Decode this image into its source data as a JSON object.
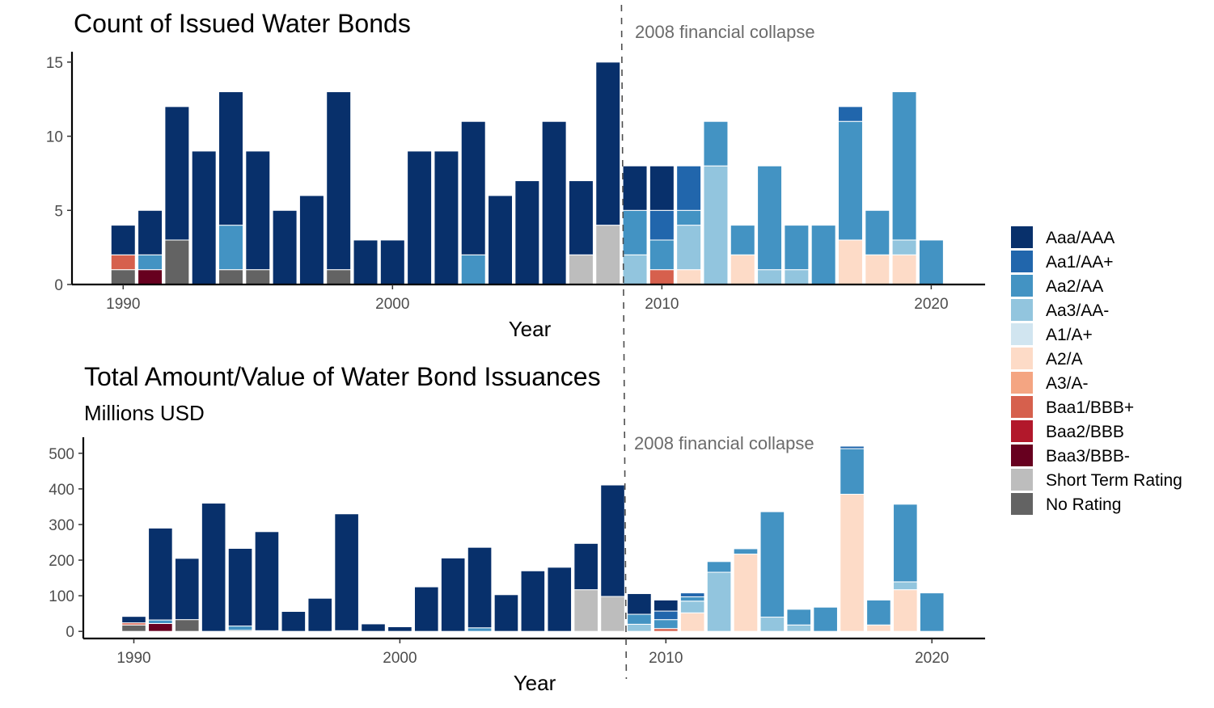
{
  "colors": {
    "Aaa/AAA": "#08306b",
    "Aa1/AA+": "#2166ac",
    "Aa2/AA": "#4393c3",
    "Aa3/AA-": "#92c5de",
    "A1/A+": "#d1e5f0",
    "A2/A": "#fddbc7",
    "A3/A-": "#f4a582",
    "Baa1/BBB+": "#d6604d",
    "Baa2/BBB": "#b2182b",
    "Baa3/BBB-": "#67001f",
    "Short Term Rating": "#bdbdbd",
    "No Rating": "#636363"
  },
  "legend": {
    "position": "right",
    "entries": [
      "Aaa/AAA",
      "Aa1/AA+",
      "Aa2/AA",
      "Aa3/AA-",
      "A1/A+",
      "A2/A",
      "A3/A-",
      "Baa1/BBB+",
      "Baa2/BBB",
      "Baa3/BBB-",
      "Short Term Rating",
      "No Rating"
    ]
  },
  "chart_data": [
    {
      "type": "bar",
      "stacked": true,
      "title": "Count of Issued Water Bonds",
      "subtitle": "",
      "xlabel": "Year",
      "ylabel": "",
      "xlim": [
        1988.1,
        2022.0
      ],
      "ylim": [
        0,
        15.7
      ],
      "xticks": [
        1990,
        2000,
        2010,
        2020
      ],
      "yticks": [
        0,
        5,
        10,
        15
      ],
      "grid": false,
      "annotation": {
        "text": "2008 financial collapse",
        "x": 2008.5
      },
      "bars": [
        {
          "year": 1990,
          "stack": [
            [
              "No Rating",
              1
            ],
            [
              "Baa1/BBB+",
              1
            ],
            [
              "Aaa/AAA",
              2
            ]
          ]
        },
        {
          "year": 1991,
          "stack": [
            [
              "Baa3/BBB-",
              1
            ],
            [
              "Aa2/AA",
              1
            ],
            [
              "Aaa/AAA",
              3
            ]
          ]
        },
        {
          "year": 1992,
          "stack": [
            [
              "No Rating",
              3
            ],
            [
              "Aaa/AAA",
              9
            ]
          ]
        },
        {
          "year": 1993,
          "stack": [
            [
              "Aaa/AAA",
              9
            ]
          ]
        },
        {
          "year": 1994,
          "stack": [
            [
              "No Rating",
              1
            ],
            [
              "Aa2/AA",
              3
            ],
            [
              "Aaa/AAA",
              9
            ]
          ]
        },
        {
          "year": 1995,
          "stack": [
            [
              "No Rating",
              1
            ],
            [
              "Aaa/AAA",
              8
            ]
          ]
        },
        {
          "year": 1996,
          "stack": [
            [
              "Aaa/AAA",
              5
            ]
          ]
        },
        {
          "year": 1997,
          "stack": [
            [
              "Aaa/AAA",
              6
            ]
          ]
        },
        {
          "year": 1998,
          "stack": [
            [
              "No Rating",
              1
            ],
            [
              "Aaa/AAA",
              12
            ]
          ]
        },
        {
          "year": 1999,
          "stack": [
            [
              "Aaa/AAA",
              3
            ]
          ]
        },
        {
          "year": 2000,
          "stack": [
            [
              "Aaa/AAA",
              3
            ]
          ]
        },
        {
          "year": 2001,
          "stack": [
            [
              "Aaa/AAA",
              9
            ]
          ]
        },
        {
          "year": 2002,
          "stack": [
            [
              "Aaa/AAA",
              9
            ]
          ]
        },
        {
          "year": 2003,
          "stack": [
            [
              "Aa2/AA",
              2
            ],
            [
              "Aaa/AAA",
              9
            ]
          ]
        },
        {
          "year": 2004,
          "stack": [
            [
              "Aaa/AAA",
              6
            ]
          ]
        },
        {
          "year": 2005,
          "stack": [
            [
              "Aaa/AAA",
              7
            ]
          ]
        },
        {
          "year": 2006,
          "stack": [
            [
              "Aaa/AAA",
              11
            ]
          ]
        },
        {
          "year": 2007,
          "stack": [
            [
              "Short Term Rating",
              2
            ],
            [
              "Aaa/AAA",
              5
            ]
          ]
        },
        {
          "year": 2008,
          "stack": [
            [
              "Short Term Rating",
              4
            ],
            [
              "Aaa/AAA",
              11
            ]
          ]
        },
        {
          "year": 2009,
          "stack": [
            [
              "Aa3/AA-",
              2
            ],
            [
              "Aa2/AA",
              3
            ],
            [
              "Aaa/AAA",
              3
            ]
          ]
        },
        {
          "year": 2010,
          "stack": [
            [
              "Baa1/BBB+",
              1
            ],
            [
              "Aa2/AA",
              2
            ],
            [
              "Aa1/AA+",
              2
            ],
            [
              "Aaa/AAA",
              3
            ]
          ]
        },
        {
          "year": 2011,
          "stack": [
            [
              "A2/A",
              1
            ],
            [
              "Aa3/AA-",
              3
            ],
            [
              "Aa2/AA",
              1
            ],
            [
              "Aa1/AA+",
              3
            ]
          ]
        },
        {
          "year": 2012,
          "stack": [
            [
              "Aa3/AA-",
              8
            ],
            [
              "Aa2/AA",
              3
            ]
          ]
        },
        {
          "year": 2013,
          "stack": [
            [
              "A2/A",
              2
            ],
            [
              "Aa2/AA",
              2
            ]
          ]
        },
        {
          "year": 2014,
          "stack": [
            [
              "Aa3/AA-",
              1
            ],
            [
              "Aa2/AA",
              7
            ]
          ]
        },
        {
          "year": 2015,
          "stack": [
            [
              "Aa3/AA-",
              1
            ],
            [
              "Aa2/AA",
              3
            ]
          ]
        },
        {
          "year": 2016,
          "stack": [
            [
              "Aa2/AA",
              4
            ]
          ]
        },
        {
          "year": 2017,
          "stack": [
            [
              "A2/A",
              3
            ],
            [
              "Aa2/AA",
              8
            ],
            [
              "Aa1/AA+",
              1
            ]
          ]
        },
        {
          "year": 2018,
          "stack": [
            [
              "A2/A",
              2
            ],
            [
              "Aa2/AA",
              3
            ]
          ]
        },
        {
          "year": 2019,
          "stack": [
            [
              "A2/A",
              2
            ],
            [
              "Aa3/AA-",
              1
            ],
            [
              "Aa2/AA",
              10
            ]
          ]
        },
        {
          "year": 2020,
          "stack": [
            [
              "Aa2/AA",
              3
            ]
          ]
        }
      ]
    },
    {
      "type": "bar",
      "stacked": true,
      "title": "Total Amount/Value of Water Bond Issuances",
      "subtitle": "Millions USD",
      "xlabel": "Year",
      "ylabel": "",
      "xlim": [
        1988.1,
        2022.0
      ],
      "ylim": [
        -20,
        545
      ],
      "xticks": [
        1990,
        2000,
        2010,
        2020
      ],
      "yticks": [
        0,
        100,
        200,
        300,
        400,
        500
      ],
      "grid": false,
      "annotation": {
        "text": "2008 financial collapse",
        "x": 2008.5
      },
      "bars": [
        {
          "year": 1990,
          "stack": [
            [
              "No Rating",
              18
            ],
            [
              "Baa1/BBB+",
              6
            ],
            [
              "Aaa/AAA",
              18
            ]
          ]
        },
        {
          "year": 1991,
          "stack": [
            [
              "Baa3/BBB-",
              22
            ],
            [
              "Aa2/AA",
              10
            ],
            [
              "Aaa/AAA",
              258
            ]
          ]
        },
        {
          "year": 1992,
          "stack": [
            [
              "No Rating",
              33
            ],
            [
              "Aaa/AAA",
              172
            ]
          ]
        },
        {
          "year": 1993,
          "stack": [
            [
              "Aaa/AAA",
              360
            ]
          ]
        },
        {
          "year": 1994,
          "stack": [
            [
              "No Rating",
              3
            ],
            [
              "Aa2/AA",
              12
            ],
            [
              "Aaa/AAA",
              218
            ]
          ]
        },
        {
          "year": 1995,
          "stack": [
            [
              "No Rating",
              2
            ],
            [
              "Aaa/AAA",
              278
            ]
          ]
        },
        {
          "year": 1996,
          "stack": [
            [
              "Aaa/AAA",
              56
            ]
          ]
        },
        {
          "year": 1997,
          "stack": [
            [
              "Aaa/AAA",
              93
            ]
          ]
        },
        {
          "year": 1998,
          "stack": [
            [
              "No Rating",
              2
            ],
            [
              "Aaa/AAA",
              328
            ]
          ]
        },
        {
          "year": 1999,
          "stack": [
            [
              "Aaa/AAA",
              21
            ]
          ]
        },
        {
          "year": 2000,
          "stack": [
            [
              "Aaa/AAA",
              13
            ]
          ]
        },
        {
          "year": 2001,
          "stack": [
            [
              "Aaa/AAA",
              125
            ]
          ]
        },
        {
          "year": 2002,
          "stack": [
            [
              "Aaa/AAA",
              206
            ]
          ]
        },
        {
          "year": 2003,
          "stack": [
            [
              "Aa2/AA",
              10
            ],
            [
              "Aaa/AAA",
              226
            ]
          ]
        },
        {
          "year": 2004,
          "stack": [
            [
              "Aaa/AAA",
              103
            ]
          ]
        },
        {
          "year": 2005,
          "stack": [
            [
              "Aaa/AAA",
              170
            ]
          ]
        },
        {
          "year": 2006,
          "stack": [
            [
              "Aaa/AAA",
              180
            ]
          ]
        },
        {
          "year": 2007,
          "stack": [
            [
              "Short Term Rating",
              117
            ],
            [
              "Aaa/AAA",
              130
            ]
          ]
        },
        {
          "year": 2008,
          "stack": [
            [
              "Short Term Rating",
              98
            ],
            [
              "Aaa/AAA",
              313
            ]
          ]
        },
        {
          "year": 2009,
          "stack": [
            [
              "Aa3/AA-",
              20
            ],
            [
              "Aa2/AA",
              28
            ],
            [
              "Aaa/AAA",
              58
            ]
          ]
        },
        {
          "year": 2010,
          "stack": [
            [
              "Baa1/BBB+",
              8
            ],
            [
              "Aa2/AA",
              25
            ],
            [
              "Aa1/AA+",
              24
            ],
            [
              "Aaa/AAA",
              31
            ]
          ]
        },
        {
          "year": 2011,
          "stack": [
            [
              "A2/A",
              52
            ],
            [
              "Aa3/AA-",
              33
            ],
            [
              "Aa2/AA",
              12
            ],
            [
              "Aa1/AA+",
              11
            ]
          ]
        },
        {
          "year": 2012,
          "stack": [
            [
              "Aa3/AA-",
              166
            ],
            [
              "Aa2/AA",
              30
            ]
          ]
        },
        {
          "year": 2013,
          "stack": [
            [
              "A2/A",
              217
            ],
            [
              "Aa2/AA",
              15
            ]
          ]
        },
        {
          "year": 2014,
          "stack": [
            [
              "Aa3/AA-",
              40
            ],
            [
              "Aa2/AA",
              296
            ]
          ]
        },
        {
          "year": 2015,
          "stack": [
            [
              "Aa3/AA-",
              18
            ],
            [
              "Aa2/AA",
              44
            ]
          ]
        },
        {
          "year": 2016,
          "stack": [
            [
              "Aa2/AA",
              68
            ]
          ]
        },
        {
          "year": 2017,
          "stack": [
            [
              "A2/A",
              385
            ],
            [
              "Aa2/AA",
              128
            ],
            [
              "Aa1/AA+",
              7
            ]
          ]
        },
        {
          "year": 2018,
          "stack": [
            [
              "A2/A",
              18
            ],
            [
              "Aa2/AA",
              70
            ]
          ]
        },
        {
          "year": 2019,
          "stack": [
            [
              "A2/A",
              117
            ],
            [
              "Aa3/AA-",
              22
            ],
            [
              "Aa2/AA",
              218
            ]
          ]
        },
        {
          "year": 2020,
          "stack": [
            [
              "Aa2/AA",
              108
            ]
          ]
        }
      ]
    }
  ]
}
